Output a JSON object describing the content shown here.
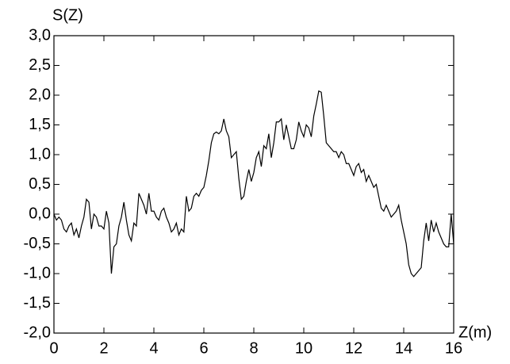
{
  "chart_data": {
    "type": "line",
    "y_label": "S(Z)",
    "x_label": "Z(m)",
    "x": [
      0,
      0.1,
      0.2,
      0.3,
      0.4,
      0.5,
      0.6,
      0.7,
      0.8,
      0.9,
      1,
      1.1,
      1.2,
      1.3,
      1.4,
      1.5,
      1.6,
      1.7,
      1.8,
      1.9,
      2,
      2.1,
      2.2,
      2.3,
      2.4,
      2.5,
      2.6,
      2.7,
      2.8,
      2.9,
      3,
      3.1,
      3.2,
      3.3,
      3.4,
      3.5,
      3.6,
      3.7,
      3.8,
      3.9,
      4,
      4.1,
      4.2,
      4.3,
      4.4,
      4.5,
      4.6,
      4.7,
      4.8,
      4.9,
      5,
      5.1,
      5.2,
      5.3,
      5.4,
      5.5,
      5.6,
      5.7,
      5.8,
      5.9,
      6,
      6.1,
      6.2,
      6.3,
      6.4,
      6.5,
      6.6,
      6.7,
      6.8,
      6.9,
      7,
      7.1,
      7.2,
      7.3,
      7.4,
      7.5,
      7.6,
      7.7,
      7.8,
      7.9,
      8,
      8.1,
      8.2,
      8.3,
      8.4,
      8.5,
      8.6,
      8.7,
      8.8,
      8.9,
      9,
      9.1,
      9.2,
      9.3,
      9.4,
      9.5,
      9.6,
      9.7,
      9.8,
      9.9,
      10,
      10.1,
      10.2,
      10.3,
      10.4,
      10.5,
      10.6,
      10.7,
      10.8,
      10.9,
      11,
      11.1,
      11.2,
      11.3,
      11.4,
      11.5,
      11.6,
      11.7,
      11.8,
      11.9,
      12,
      12.1,
      12.2,
      12.3,
      12.4,
      12.5,
      12.6,
      12.7,
      12.8,
      12.9,
      13,
      13.1,
      13.2,
      13.3,
      13.4,
      13.5,
      13.6,
      13.7,
      13.8,
      13.9,
      14,
      14.1,
      14.2,
      14.3,
      14.4,
      14.5,
      14.6,
      14.7,
      14.8,
      14.9,
      15,
      15.1,
      15.2,
      15.3,
      15.4,
      15.5,
      15.6,
      15.7,
      15.8,
      15.9,
      16
    ],
    "series": [
      {
        "name": "S(Z)",
        "color": "#000000",
        "values": [
          0,
          -0.1,
          -0.05,
          -0.1,
          -0.25,
          -0.3,
          -0.2,
          -0.15,
          -0.35,
          -0.25,
          -0.4,
          -0.2,
          -0.05,
          0.25,
          0.2,
          -0.25,
          0,
          -0.05,
          -0.2,
          -0.2,
          -0.25,
          0.05,
          -0.15,
          -1,
          -0.55,
          -0.5,
          -0.2,
          -0.05,
          0.2,
          -0.1,
          -0.35,
          -0.45,
          -0.15,
          -0.2,
          0.35,
          0.25,
          0.15,
          0,
          0.35,
          0.05,
          0.05,
          -0.05,
          -0.1,
          0.05,
          0.1,
          -0.05,
          -0.15,
          -0.3,
          -0.25,
          -0.15,
          -0.35,
          -0.25,
          -0.3,
          0.3,
          0.05,
          0.1,
          0.3,
          0.35,
          0.3,
          0.4,
          0.45,
          0.65,
          0.9,
          1.2,
          1.35,
          1.38,
          1.35,
          1.4,
          1.6,
          1.4,
          1.3,
          0.95,
          1,
          1.05,
          0.6,
          0.25,
          0.3,
          0.55,
          0.75,
          0.55,
          0.7,
          0.95,
          1.05,
          0.8,
          1.15,
          1.1,
          1.35,
          0.95,
          1.2,
          1.55,
          1.55,
          1.6,
          1.25,
          1.5,
          1.3,
          1.1,
          1.1,
          1.25,
          1.55,
          1.4,
          1.3,
          1.5,
          1.45,
          1.3,
          1.65,
          1.85,
          2.07,
          2.05,
          1.65,
          1.2,
          1.15,
          1.1,
          1.05,
          1.05,
          0.95,
          1.05,
          1,
          0.85,
          0.85,
          0.75,
          0.65,
          0.8,
          0.85,
          0.7,
          0.75,
          0.55,
          0.65,
          0.55,
          0.45,
          0.5,
          0.3,
          0.1,
          0.05,
          0.15,
          0.05,
          -0.05,
          0,
          0.05,
          0.15,
          -0.1,
          -0.3,
          -0.5,
          -0.85,
          -1,
          -1.05,
          -1,
          -0.95,
          -0.9,
          -0.45,
          -0.15,
          -0.45,
          -0.1,
          -0.3,
          -0.15,
          -0.3,
          -0.4,
          -0.5,
          -0.55,
          -0.55,
          0,
          -0.5
        ]
      }
    ],
    "xlim": [
      0,
      16
    ],
    "xticks": [
      0,
      2,
      4,
      6,
      8,
      10,
      12,
      14,
      16
    ],
    "ylim": [
      -2,
      3
    ],
    "yticks": [
      {
        "value": -2,
        "label": "-2,0"
      },
      {
        "value": -1.5,
        "label": "-1,5"
      },
      {
        "value": -1,
        "label": "-1,0"
      },
      {
        "value": -0.5,
        "label": "-0,5"
      },
      {
        "value": 0,
        "label": "0,0"
      },
      {
        "value": 0.5,
        "label": "0,5"
      },
      {
        "value": 1,
        "label": "1,0"
      },
      {
        "value": 1.5,
        "label": "1,5"
      },
      {
        "value": 2,
        "label": "2,0"
      },
      {
        "value": 2.5,
        "label": "2,5"
      },
      {
        "value": 3,
        "label": "3,0"
      }
    ],
    "grid": false
  }
}
